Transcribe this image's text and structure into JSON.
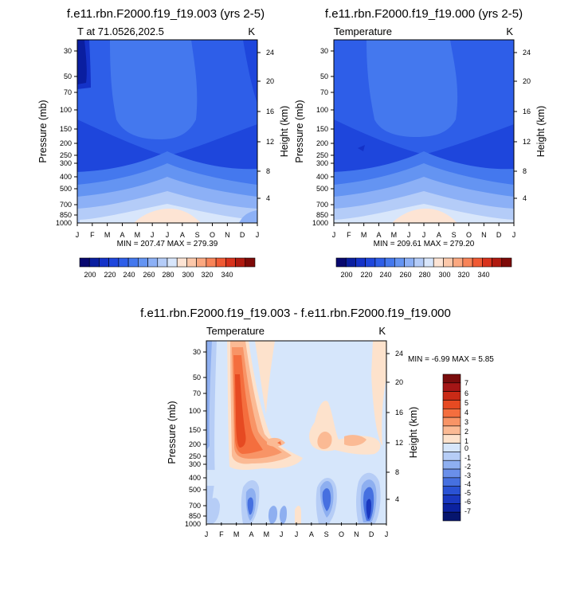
{
  "chart_data": [
    {
      "type": "heatmap",
      "title": "f.e11.rbn.F2000.f19_f19.003 (yrs 2-5)",
      "left_label": "T at 71.0526,202.5",
      "units": "K",
      "ylabel": "Pressure (mb)",
      "ylabel_right": "Height (km)",
      "x_ticks": [
        "J",
        "F",
        "M",
        "A",
        "M",
        "J",
        "J",
        "A",
        "S",
        "O",
        "N",
        "D",
        "J"
      ],
      "y_ticks": [
        "30",
        "50",
        "70",
        "100",
        "150",
        "200",
        "250",
        "300",
        "400",
        "500",
        "700",
        "850",
        "1000"
      ],
      "y_ticks_right": [
        "24",
        "20",
        "16",
        "12",
        "8",
        "4"
      ],
      "stats_text": "MIN = 207.47  MAX = 279.39",
      "min": 207.47,
      "max": 279.39,
      "colorbar_labels": [
        "200",
        "220",
        "240",
        "260",
        "280",
        "300",
        "320",
        "340"
      ]
    },
    {
      "type": "heatmap",
      "title": "f.e11.rbn.F2000.f19_f19.000 (yrs 2-5)",
      "left_label": "Temperature",
      "units": "K",
      "ylabel": "Pressure (mb)",
      "ylabel_right": "Height (km)",
      "x_ticks": [
        "J",
        "F",
        "M",
        "A",
        "M",
        "J",
        "J",
        "A",
        "S",
        "O",
        "N",
        "D",
        "J"
      ],
      "y_ticks": [
        "30",
        "50",
        "70",
        "100",
        "150",
        "200",
        "250",
        "300",
        "400",
        "500",
        "700",
        "850",
        "1000"
      ],
      "y_ticks_right": [
        "24",
        "20",
        "16",
        "12",
        "8",
        "4"
      ],
      "stats_text": "MIN = 209.61  MAX = 279.20",
      "min": 209.61,
      "max": 279.2,
      "colorbar_labels": [
        "200",
        "220",
        "240",
        "260",
        "280",
        "300",
        "320",
        "340"
      ]
    },
    {
      "type": "heatmap",
      "title": "f.e11.rbn.F2000.f19_f19.003 - f.e11.rbn.F2000.f19_f19.000",
      "left_label": "Temperature",
      "units": "K",
      "ylabel": "Pressure (mb)",
      "ylabel_right": "Height (km)",
      "x_ticks": [
        "J",
        "F",
        "M",
        "A",
        "M",
        "J",
        "J",
        "A",
        "S",
        "O",
        "N",
        "D",
        "J"
      ],
      "y_ticks": [
        "30",
        "50",
        "70",
        "100",
        "150",
        "200",
        "250",
        "300",
        "400",
        "500",
        "700",
        "850",
        "1000"
      ],
      "y_ticks_right": [
        "24",
        "20",
        "16",
        "12",
        "8",
        "4"
      ],
      "stats_text": "MIN =  -6.99 MAX =   5.85",
      "min": -6.99,
      "max": 5.85,
      "colorbar_labels": [
        "7",
        "6",
        "5",
        "4",
        "3",
        "2",
        "1",
        "0",
        "-1",
        "-2",
        "-3",
        "-4",
        "-5",
        "-6",
        "-7"
      ]
    }
  ],
  "palette": {
    "abs": [
      "#08086f",
      "#0a1ea0",
      "#1432c8",
      "#1e46dc",
      "#2e5ee8",
      "#4478ee",
      "#6494f2",
      "#8cb0f6",
      "#b4ccf8",
      "#d8e6fb",
      "#fde4d4",
      "#fcc8aa",
      "#fba880",
      "#f88458",
      "#f05a34",
      "#d8321c",
      "#b01a10",
      "#7e0a08"
    ],
    "diff": [
      "#7a0c0c",
      "#a51616",
      "#c92a16",
      "#e64a22",
      "#f46e3e",
      "#f89466",
      "#fbba94",
      "#fde2cc",
      "#d6e6fb",
      "#b6cdf6",
      "#8eaff0",
      "#6a8fea",
      "#4670e0",
      "#2a52d4",
      "#1a38c0",
      "#0c22a0",
      "#06156e"
    ]
  }
}
